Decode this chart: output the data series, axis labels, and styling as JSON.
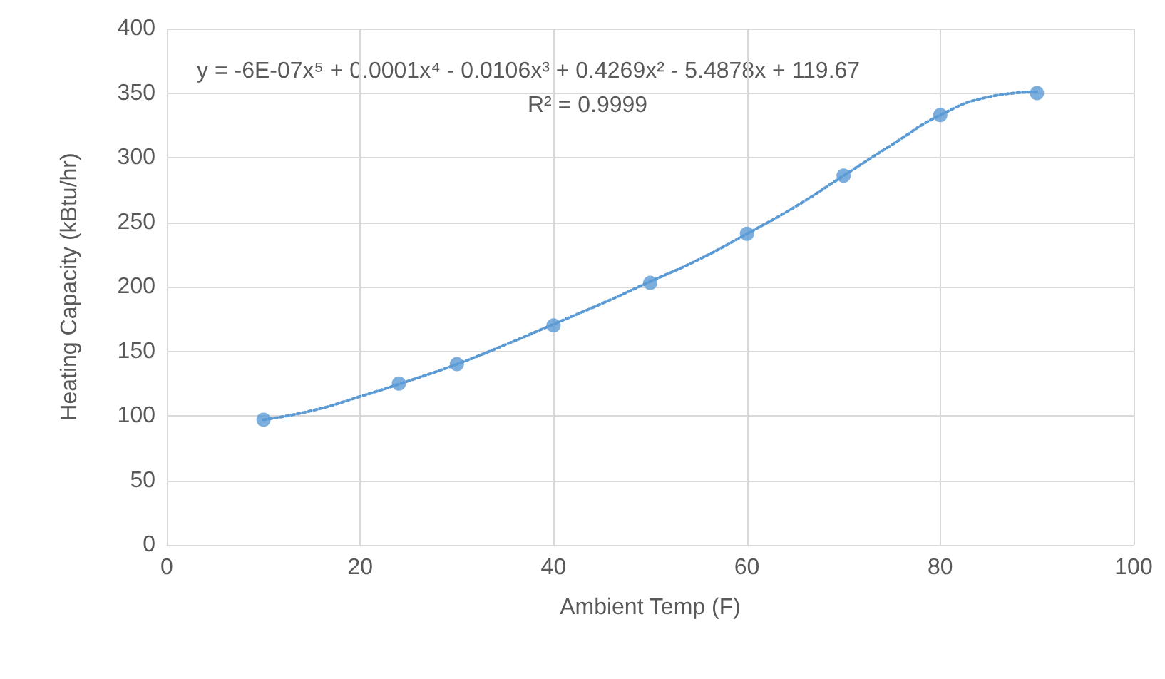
{
  "chart_data": {
    "type": "scatter",
    "xlabel": "Ambient Temp (F)",
    "ylabel": "Heating Capacity (kBtu/hr)",
    "annotations": [
      "y = -6E-07x⁵ + 0.0001x⁴ - 0.0106x³ + 0.4269x² - 5.4878x + 119.67",
      "R² = 0.9999"
    ],
    "xlim": [
      0,
      100
    ],
    "xticks": [
      0,
      20,
      40,
      60,
      80,
      100
    ],
    "ylim": [
      0,
      400
    ],
    "yticks": [
      0,
      50,
      100,
      150,
      200,
      250,
      300,
      350,
      400
    ],
    "grid": true,
    "series": [
      {
        "color": "#5b9bd5",
        "marker": "circle",
        "x": [
          10,
          24,
          30,
          40,
          50,
          60,
          70,
          80,
          90
        ],
        "values": [
          97,
          125,
          140,
          170,
          203,
          241,
          286,
          333,
          350
        ]
      },
      {
        "type": "line",
        "color": "#5b9bd5",
        "marker": "none",
        "line_style": "dotted",
        "x": [
          10,
          15,
          20,
          25,
          30,
          35,
          40,
          45,
          50,
          55,
          60,
          65,
          70,
          75,
          80,
          85,
          90
        ],
        "values": [
          97,
          104,
          115,
          127,
          140,
          155,
          171,
          187,
          204,
          221,
          241,
          262,
          286,
          310,
          333,
          347,
          351
        ]
      }
    ]
  }
}
